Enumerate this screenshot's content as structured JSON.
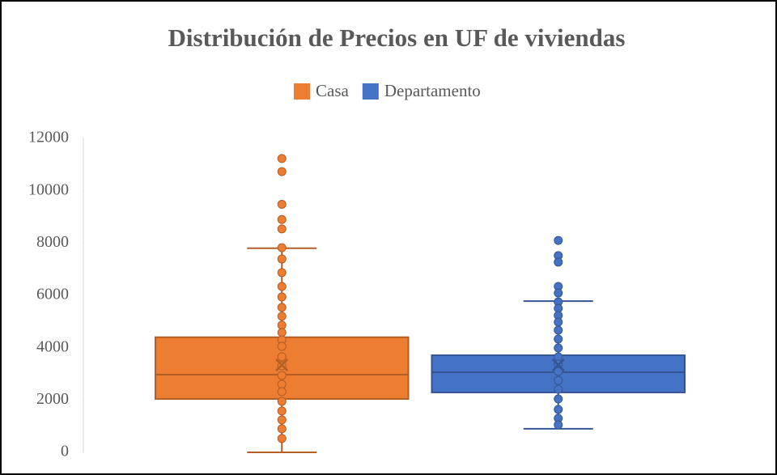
{
  "chart_data": {
    "type": "box",
    "title": "Distribución de Precios en UF de viviendas",
    "ylim": [
      0,
      12000
    ],
    "yticks": [
      0,
      2000,
      4000,
      6000,
      8000,
      10000,
      12000
    ],
    "grid": false,
    "legend": "top",
    "series": [
      {
        "name": "Casa",
        "color": "#ed7d31",
        "whisker_low": 0,
        "q1": 2040,
        "median": 2970,
        "q3": 4400,
        "whisker_high": 7800,
        "mean": 3340,
        "points": [
          11230,
          10730,
          9480,
          8900,
          8540,
          7820,
          7390,
          6870,
          6340,
          5940,
          5540,
          5200,
          4860,
          4580,
          4300,
          4050,
          3650,
          3310,
          2940,
          2600,
          2320,
          1950,
          1580,
          1240,
          900,
          530
        ]
      },
      {
        "name": "Departamento",
        "color": "#4472c4",
        "whisker_low": 900,
        "q1": 2290,
        "median": 3060,
        "q3": 3710,
        "whisker_high": 5780,
        "mean": 3340,
        "points": [
          8100,
          7520,
          7270,
          6340,
          6090,
          5750,
          5500,
          5230,
          4980,
          4670,
          4330,
          3990,
          3650,
          3370,
          3090,
          2750,
          2410,
          2040,
          1640,
          1300,
          1050
        ]
      }
    ]
  }
}
